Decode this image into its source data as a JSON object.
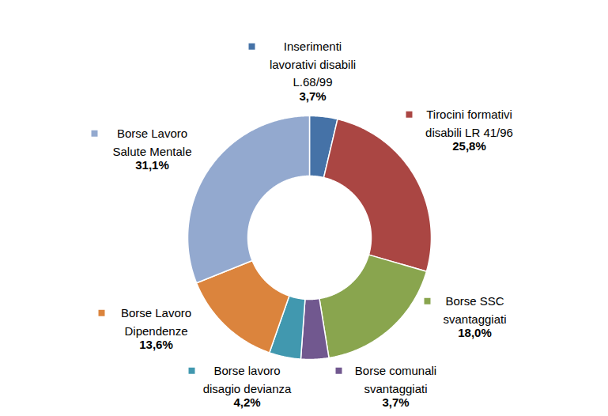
{
  "chart_data": {
    "type": "donut",
    "categories": [
      "Inserimenti\nlavorativi disabili\nL.68/99",
      "Tirocini formativi\ndisabili LR 41/96",
      "Borse SSC\nsvantaggiati",
      "Borse comunali\nsvantaggiati",
      "Borse lavoro\ndisagio devianza",
      "Borse Lavoro\nDipendenze",
      "Borse Lavoro\nSalute Mentale"
    ],
    "values": [
      3.7,
      25.8,
      18.0,
      3.7,
      4.2,
      13.6,
      31.1
    ],
    "value_labels": [
      "3,7%",
      "25,8%",
      "18,0%",
      "3,7%",
      "4,2%",
      "13,6%",
      "31,1%"
    ],
    "colors": [
      "#4572A7",
      "#AA4643",
      "#89A54E",
      "#71588F",
      "#4198AF",
      "#DB843D",
      "#93A9CF"
    ],
    "data_labels": true
  }
}
